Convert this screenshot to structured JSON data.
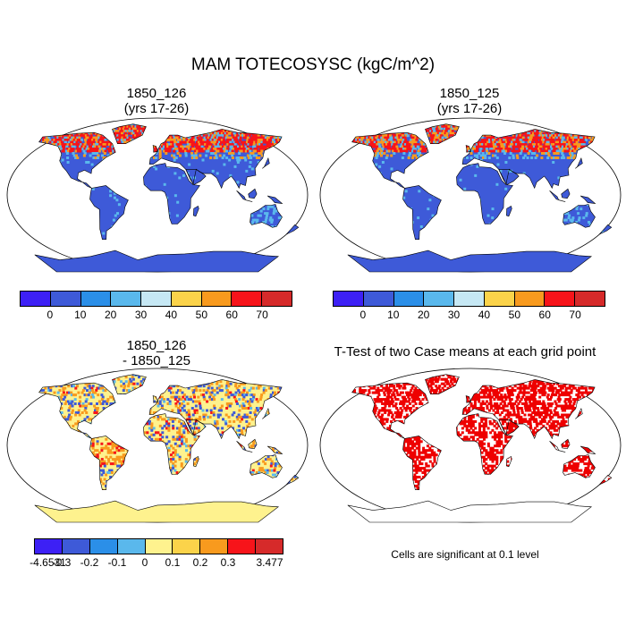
{
  "main_title": "MAM TOTECOSYSC (kgC/m^2)",
  "panels": {
    "top_left": {
      "title_line1": "1850_126",
      "title_line2": "(yrs 17-26)"
    },
    "top_right": {
      "title_line1": "1850_125",
      "title_line2": "(yrs 17-26)"
    },
    "bottom_left": {
      "title_line1": "1850_126",
      "title_line2": "- 1850_125"
    },
    "bottom_right": {
      "title": "T-Test of two Case means at each grid point"
    }
  },
  "colorbars": {
    "abs": {
      "colors": [
        "#3d20f5",
        "#3e5ad8",
        "#2b8fe8",
        "#5ab8ec",
        "#c6e8f4",
        "#fbd34a",
        "#f89a1e",
        "#f7141a",
        "#d62a2a"
      ],
      "labels": [
        "0",
        "10",
        "20",
        "30",
        "40",
        "50",
        "60",
        "70"
      ]
    },
    "diff": {
      "colors": [
        "#3d20f5",
        "#3e5ad8",
        "#2b8fe8",
        "#5ab8ec",
        "#fef28e",
        "#fbd34a",
        "#f89a1e",
        "#f7141a",
        "#d62a2a"
      ],
      "labels": [
        "-4.6531",
        "-0.3",
        "-0.2",
        "-0.1",
        "0",
        "0.1",
        "0.2",
        "0.3",
        "3.477"
      ]
    }
  },
  "significance_note": "Cells are significant at 0.1 level",
  "map_colors": {
    "abs_land": "#3e5ad8",
    "abs_high": "#f7141a",
    "abs_mid": "#f89a1e",
    "abs_light": "#5ab8ec",
    "diff_land": "#fef28e",
    "diff_pos": "#f89a1e",
    "diff_neg": "#3e5ad8",
    "sig": "#ee0000"
  }
}
